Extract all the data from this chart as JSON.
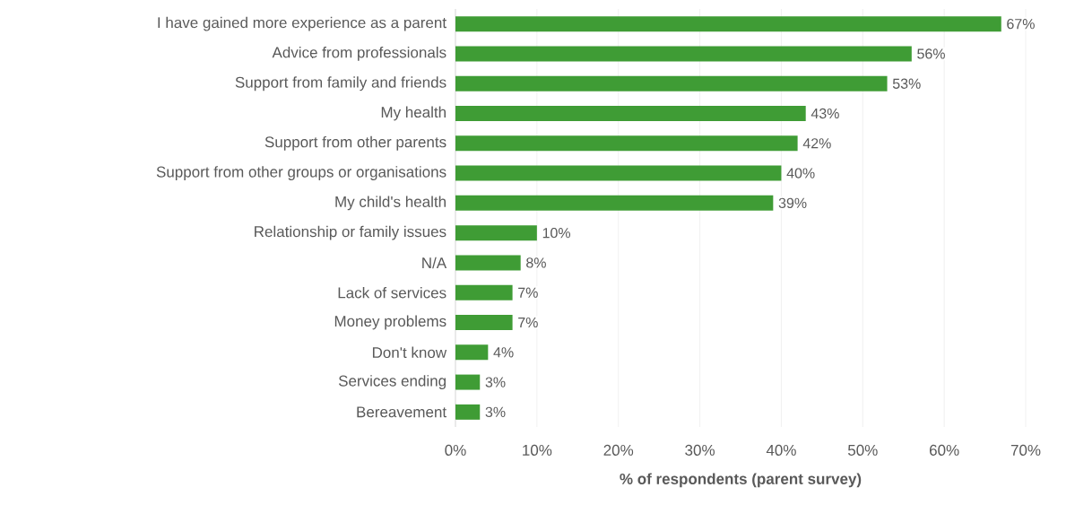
{
  "chart_data": {
    "type": "bar",
    "orientation": "horizontal",
    "xlabel": "% of respondents (parent survey)",
    "categories": [
      "I have gained more experience as a parent",
      "Advice from professionals",
      "Support from family and friends",
      "My health",
      "Support from other parents",
      "Support from other groups or organisations",
      "My child's health",
      "Relationship or family issues",
      "N/A",
      "Lack of services",
      "Money problems",
      "Don't know",
      "Services ending",
      "Bereavement"
    ],
    "values": [
      67,
      56,
      53,
      43,
      42,
      40,
      39,
      10,
      8,
      7,
      7,
      4,
      3,
      3
    ],
    "value_labels": [
      "67%",
      "56%",
      "53%",
      "43%",
      "42%",
      "40%",
      "39%",
      "10%",
      "8%",
      "7%",
      "7%",
      "4%",
      "3%",
      "3%"
    ],
    "color": "#3f9c35",
    "xlim": [
      0,
      70
    ],
    "xticks": [
      {
        "value": 0,
        "label": "0%"
      },
      {
        "value": 10,
        "label": "10%"
      },
      {
        "value": 20,
        "label": "20%"
      },
      {
        "value": 30,
        "label": "30%"
      },
      {
        "value": 40,
        "label": "40%"
      },
      {
        "value": 50,
        "label": "50%"
      },
      {
        "value": 60,
        "label": "60%"
      },
      {
        "value": 70,
        "label": "70%"
      }
    ],
    "grid": "x"
  }
}
